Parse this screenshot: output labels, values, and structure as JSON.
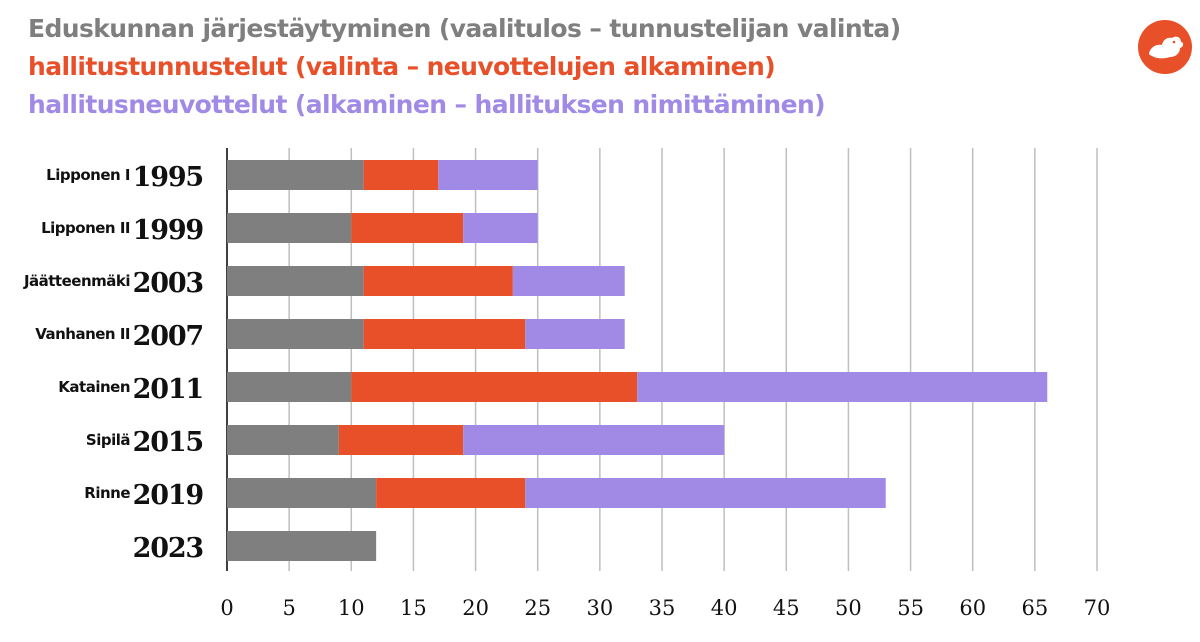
{
  "legend": [
    {
      "label": "Eduskunnan järjestäytyminen (vaalitulos – tunnustelijan valinta)",
      "color": "#7f7f7f"
    },
    {
      "label": "hallitustunnustelut (valinta – neuvottelujen alkaminen)",
      "color": "#e8502a"
    },
    {
      "label": "hallitusneuvottelut (alkaminen – hallituksen nimittäminen)",
      "color": "#a08ae6"
    }
  ],
  "logo": {
    "icon": "squirrel-icon",
    "color": "#e8502a"
  },
  "chart_data": {
    "type": "bar",
    "orientation": "horizontal",
    "stacked": true,
    "categories": [
      {
        "cabinet": "Lipponen I",
        "year": "1995"
      },
      {
        "cabinet": "Lipponen II",
        "year": "1999"
      },
      {
        "cabinet": "Jäätteenmäki",
        "year": "2003"
      },
      {
        "cabinet": "Vanhanen II",
        "year": "2007"
      },
      {
        "cabinet": "Katainen",
        "year": "2011"
      },
      {
        "cabinet": "Sipilä",
        "year": "2015"
      },
      {
        "cabinet": "Rinne",
        "year": "2019"
      },
      {
        "cabinet": "",
        "year": "2023"
      }
    ],
    "series": [
      {
        "name": "Eduskunnan järjestäytyminen (vaalitulos – tunnustelijan valinta)",
        "color": "#7f7f7f",
        "values": [
          11,
          10,
          11,
          11,
          10,
          9,
          12,
          12
        ]
      },
      {
        "name": "hallitustunnustelut (valinta – neuvottelujen alkaminen)",
        "color": "#e8502a",
        "values": [
          6,
          9,
          12,
          13,
          23,
          10,
          12,
          null
        ]
      },
      {
        "name": "hallitusneuvottelut (alkaminen – hallituksen nimittäminen)",
        "color": "#a08ae6",
        "values": [
          8,
          6,
          9,
          8,
          33,
          21,
          29,
          null
        ]
      }
    ],
    "xlim": [
      0,
      70
    ],
    "xticks": [
      "0",
      "5",
      "10",
      "15",
      "20",
      "25",
      "30",
      "35",
      "40",
      "45",
      "50",
      "55",
      "60",
      "65",
      "70"
    ],
    "grid": true,
    "legend_position": "top-left"
  }
}
